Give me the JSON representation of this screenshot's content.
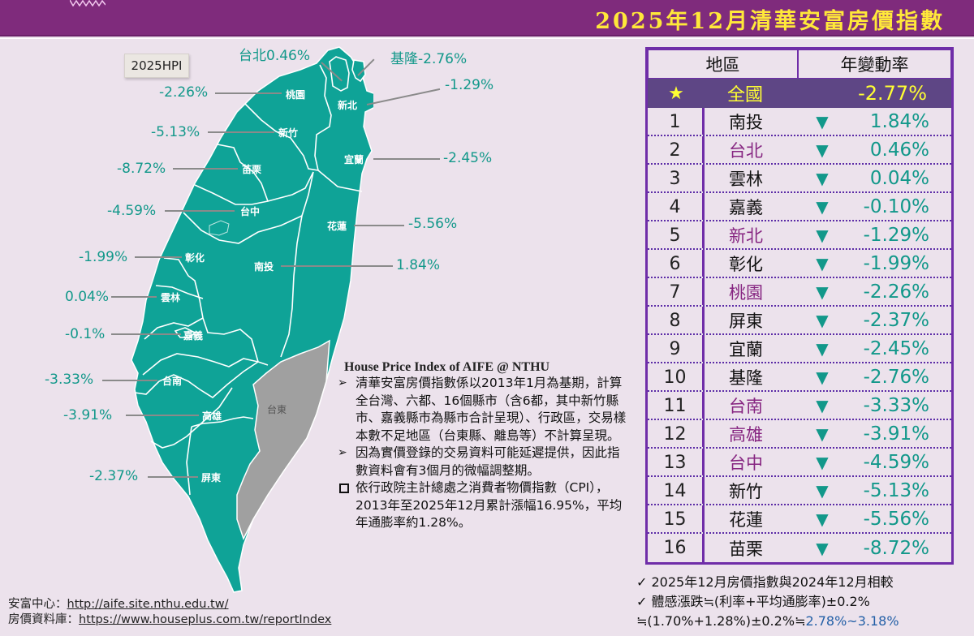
{
  "header": {
    "title": "2025年12月清華安富房價指數",
    "badge": "2025HPI"
  },
  "colors": {
    "header_bg": "#7f2b7c",
    "title": "#ffe83a",
    "map_fill": "#0fa397",
    "map_no_data": "#a0a0a0",
    "value_text": "#12988a",
    "table_border": "#6f2da8",
    "national_row_bg": "#5e4685",
    "highlight_city": "#862581"
  },
  "map": {
    "labels": [
      {
        "region": "台北",
        "value": "台北0.46%"
      },
      {
        "region": "基隆",
        "value": "基隆-2.76%"
      },
      {
        "region": "桃園",
        "value": "-2.26%"
      },
      {
        "region": "新北",
        "value": "-1.29%"
      },
      {
        "region": "新竹",
        "value": "-5.13%"
      },
      {
        "region": "苗栗",
        "value": "-8.72%"
      },
      {
        "region": "宜蘭",
        "value": "-2.45%"
      },
      {
        "region": "台中",
        "value": "-4.59%"
      },
      {
        "region": "花蓮",
        "value": "-5.56%"
      },
      {
        "region": "彰化",
        "value": "-1.99%"
      },
      {
        "region": "南投",
        "value": "1.84%"
      },
      {
        "region": "雲林",
        "value": "0.04%"
      },
      {
        "region": "嘉義",
        "value": "-0.1%"
      },
      {
        "region": "台南",
        "value": "-3.33%"
      },
      {
        "region": "高雄",
        "value": "-3.91%"
      },
      {
        "region": "屏東",
        "value": "-2.37%"
      },
      {
        "region": "台東",
        "value": ""
      }
    ]
  },
  "notes": {
    "heading": "House Price Index of AIFE @ NTHU",
    "items": [
      {
        "bullet": "➢",
        "text": "清華安富房價指數係以2013年1月為基期，計算全台灣、六都、16個縣市（含6都，其中新竹縣市、嘉義縣市為縣市合計呈現）、行政區，交易樣本數不足地區（台東縣、離島等）不計算呈現。"
      },
      {
        "bullet": "➢",
        "text": "因為實價登錄的交易資料可能延遲提供，因此指數資料會有3個月的微幅調整期。"
      },
      {
        "bullet": "□",
        "text": "依行政院主計總處之消費者物價指數（CPI），2013年至2025年12月累計漲幅16.95%，平均年通膨率約1.28%。"
      }
    ]
  },
  "links": {
    "aife_label": "安富中心：",
    "aife_url": "http://aife.site.nthu.edu.tw/",
    "db_label": "房價資料庫：",
    "db_url": "https://www.houseplus.com.tw/reportIndex"
  },
  "table": {
    "col_region": "地區",
    "col_change": "年變動率",
    "national": {
      "icon": "★",
      "name": "全國",
      "value": "-2.77%"
    },
    "rows": [
      {
        "rank": "1",
        "name": "南投",
        "value": "1.84%",
        "highlight": false
      },
      {
        "rank": "2",
        "name": "台北",
        "value": "0.46%",
        "highlight": true
      },
      {
        "rank": "3",
        "name": "雲林",
        "value": "0.04%",
        "highlight": false
      },
      {
        "rank": "4",
        "name": "嘉義",
        "value": "-0.10%",
        "highlight": false
      },
      {
        "rank": "5",
        "name": "新北",
        "value": "-1.29%",
        "highlight": true
      },
      {
        "rank": "6",
        "name": "彰化",
        "value": "-1.99%",
        "highlight": false
      },
      {
        "rank": "7",
        "name": "桃園",
        "value": "-2.26%",
        "highlight": true
      },
      {
        "rank": "8",
        "name": "屏東",
        "value": "-2.37%",
        "highlight": false
      },
      {
        "rank": "9",
        "name": "宜蘭",
        "value": "-2.45%",
        "highlight": false
      },
      {
        "rank": "10",
        "name": "基隆",
        "value": "-2.76%",
        "highlight": false
      },
      {
        "rank": "11",
        "name": "台南",
        "value": "-3.33%",
        "highlight": true
      },
      {
        "rank": "12",
        "name": "高雄",
        "value": "-3.91%",
        "highlight": true
      },
      {
        "rank": "13",
        "name": "台中",
        "value": "-4.59%",
        "highlight": true
      },
      {
        "rank": "14",
        "name": "新竹",
        "value": "-5.13%",
        "highlight": false
      },
      {
        "rank": "15",
        "name": "花蓮",
        "value": "-5.56%",
        "highlight": false
      },
      {
        "rank": "16",
        "name": "苗栗",
        "value": "-8.72%",
        "highlight": false
      }
    ],
    "arrow": "▼"
  },
  "footnotes": {
    "line1": "✓ 2025年12月房價指數與2024年12月相較",
    "line2": "✓ 體感漲跌≒(利率+平均通膨率)±0.2%",
    "line3_prefix": "≒(1.70%+1.28%)±0.2%≒",
    "line3_range": "2.78%~3.18%"
  },
  "chart_data": {
    "type": "table",
    "title": "2025年12月清華安富房價指數",
    "subtitle": "年變動率 (YoY change), 2025/12 vs 2024/12",
    "categories": [
      "全國",
      "南投",
      "台北",
      "雲林",
      "嘉義",
      "新北",
      "彰化",
      "桃園",
      "屏東",
      "宜蘭",
      "基隆",
      "台南",
      "高雄",
      "台中",
      "新竹",
      "花蓮",
      "苗栗"
    ],
    "values": [
      -2.77,
      1.84,
      0.46,
      0.04,
      -0.1,
      -1.29,
      -1.99,
      -2.26,
      -2.37,
      -2.45,
      -2.76,
      -3.33,
      -3.91,
      -4.59,
      -5.13,
      -5.56,
      -8.72
    ],
    "unit": "%",
    "no_data_regions": [
      "台東"
    ],
    "reference": {
      "interest_rate": 1.7,
      "avg_inflation": 1.28,
      "tolerance": 0.2,
      "perceived_range": [
        2.78,
        3.18
      ]
    }
  }
}
